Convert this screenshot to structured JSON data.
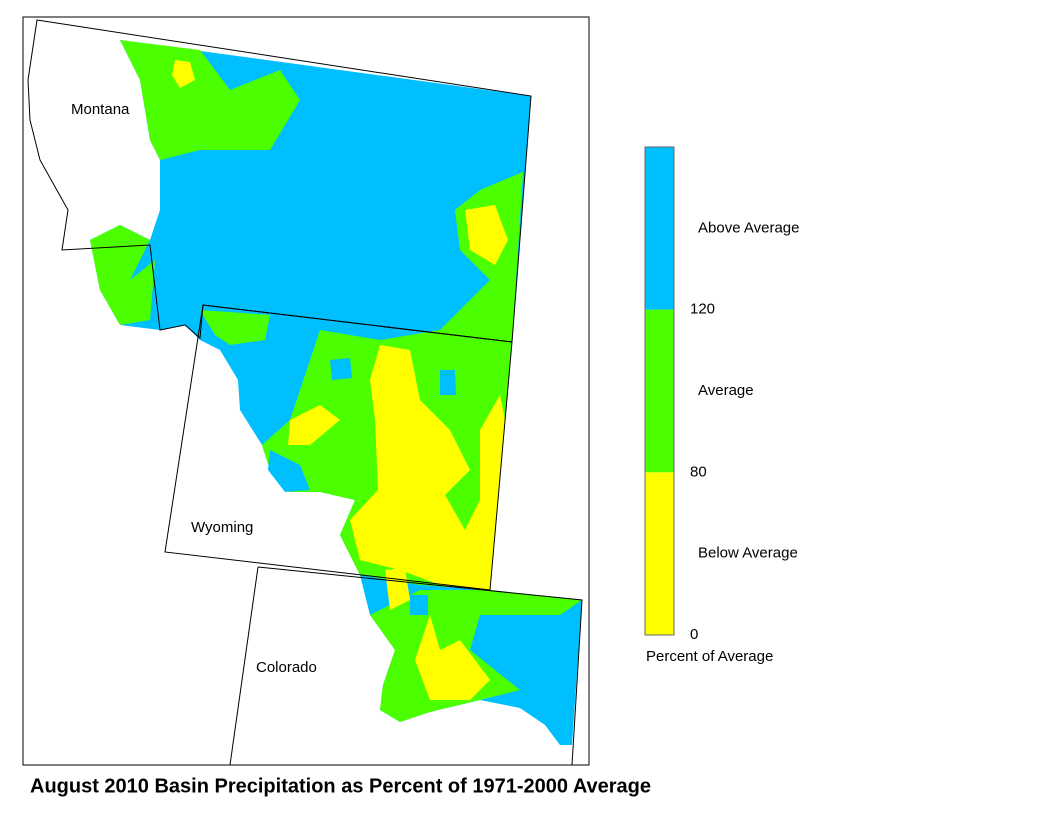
{
  "title": "August 2010 Basin Precipitation as Percent of 1971-2000 Average",
  "map": {
    "states": [
      "Montana",
      "Wyoming",
      "Colorado"
    ]
  },
  "legend": {
    "classes": [
      {
        "label": "Above Average",
        "color": "#00bfff"
      },
      {
        "label": "Average",
        "color": "#4cff00"
      },
      {
        "label": "Below Average",
        "color": "#ffff00"
      }
    ],
    "ticks": [
      120,
      80,
      0
    ],
    "caption": "Percent of Average"
  }
}
